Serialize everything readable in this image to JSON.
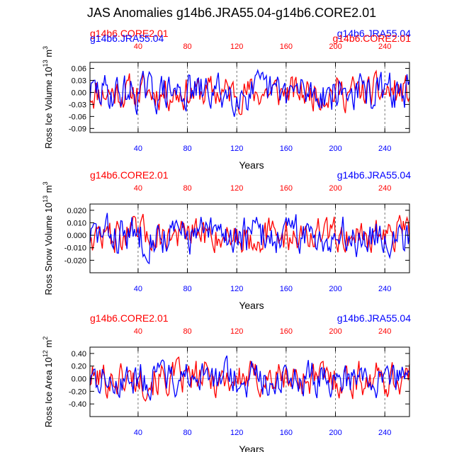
{
  "title": "JAS Anomalies g14b6.JRA55.04-g14b6.CORE2.01",
  "colors": {
    "core": "#ff0000",
    "jra": "#0000ff",
    "axis": "#000000"
  },
  "chart_data": [
    {
      "type": "line",
      "ylabel_main": "Ross Ice Volume 10",
      "ylabel_sup": "13",
      "ylabel_unit": " m",
      "ylabel_unit_sup": "3",
      "xlabel": "Years",
      "ylim": [
        -0.1,
        0.075
      ],
      "yticks": [
        "0.06",
        "0.03",
        "0.00",
        "-0.03",
        "-0.06",
        "-0.09"
      ],
      "ytick_values": [
        0.06,
        0.03,
        0.0,
        -0.03,
        -0.06,
        -0.09
      ],
      "xlim": [
        1,
        260
      ],
      "xticks_bottom": [
        "40",
        "80",
        "120",
        "160",
        "200",
        "240"
      ],
      "xticks_top": [
        "40",
        "80",
        "120",
        "160",
        "200",
        "240"
      ],
      "legend_left": "g14b6.CORE2.01",
      "legend_left2": "g14b6.JRA55.04",
      "legend_right": "g14b6.JRA55.04",
      "legend_right2": "g14b6.CORE2.01",
      "series": [
        {
          "name": "g14b6.CORE2.01",
          "color": "#ff0000",
          "amp": 0.03,
          "seed": 11
        },
        {
          "name": "g14b6.JRA55.04",
          "color": "#0000ff",
          "amp": 0.033,
          "seed": 29
        }
      ]
    },
    {
      "type": "line",
      "ylabel_main": "Ross Snow Volume 10",
      "ylabel_sup": "13",
      "ylabel_unit": " m",
      "ylabel_unit_sup": "3",
      "xlabel": "Years",
      "ylim": [
        -0.03,
        0.025
      ],
      "yticks": [
        "0.020",
        "0.010",
        "0.000",
        "-0.010",
        "-0.020"
      ],
      "ytick_values": [
        0.02,
        0.01,
        0.0,
        -0.01,
        -0.02
      ],
      "xlim": [
        1,
        260
      ],
      "xticks_bottom": [
        "40",
        "80",
        "120",
        "160",
        "200",
        "240"
      ],
      "xticks_top": [
        "40",
        "80",
        "120",
        "160",
        "200",
        "240"
      ],
      "legend_left": "g14b6.CORE2.01",
      "legend_right": "g14b6.JRA55.04",
      "series": [
        {
          "name": "g14b6.CORE2.01",
          "color": "#ff0000",
          "amp": 0.0095,
          "seed": 47
        },
        {
          "name": "g14b6.JRA55.04",
          "color": "#0000ff",
          "amp": 0.011,
          "seed": 83
        }
      ]
    },
    {
      "type": "line",
      "ylabel_main": "Ross Ice Area 10",
      "ylabel_sup": "12",
      "ylabel_unit": " m",
      "ylabel_unit_sup": "2",
      "xlabel": "Years",
      "ylim": [
        -0.6,
        0.5
      ],
      "yticks": [
        "0.40",
        "0.20",
        "0.00",
        "-0.20",
        "-0.40"
      ],
      "ytick_values": [
        0.4,
        0.2,
        0.0,
        -0.2,
        -0.4
      ],
      "xlim": [
        1,
        260
      ],
      "xticks_bottom": [
        "40",
        "80",
        "120",
        "160",
        "200",
        "240"
      ],
      "xticks_top": [
        "40",
        "80",
        "120",
        "160",
        "200",
        "240"
      ],
      "legend_left": "g14b6.CORE2.01",
      "legend_right": "g14b6.JRA55.04",
      "series": [
        {
          "name": "g14b6.CORE2.01",
          "color": "#ff0000",
          "amp": 0.2,
          "seed": 101
        },
        {
          "name": "g14b6.JRA55.04",
          "color": "#0000ff",
          "amp": 0.19,
          "seed": 137
        }
      ]
    }
  ]
}
